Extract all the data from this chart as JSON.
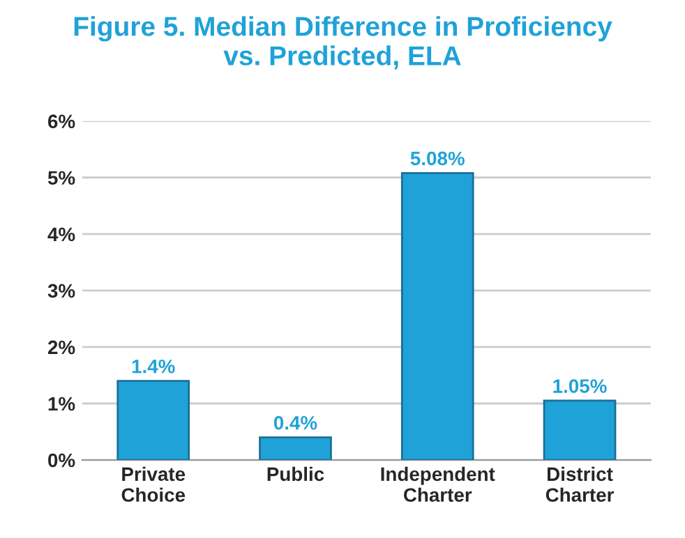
{
  "chart_data": {
    "type": "bar",
    "title": "Figure 5. Median Difference in Proficiency\nvs. Predicted, ELA",
    "categories": [
      "Private\nChoice",
      "Public",
      "Independent\nCharter",
      "District\nCharter"
    ],
    "values": [
      1.4,
      0.4,
      5.08,
      1.05
    ],
    "value_labels": [
      "1.4%",
      "0.4%",
      "5.08%",
      "1.05%"
    ],
    "color": "#1fa2d8",
    "ylim": [
      0,
      6
    ],
    "yticks": [
      {
        "value": 0,
        "label": "0%"
      },
      {
        "value": 1,
        "label": "1%"
      },
      {
        "value": 2,
        "label": "2%"
      },
      {
        "value": 3,
        "label": "3%"
      },
      {
        "value": 4,
        "label": "4%"
      },
      {
        "value": 5,
        "label": "5%"
      },
      {
        "value": 6,
        "label": "6%"
      }
    ],
    "grid": "y"
  }
}
